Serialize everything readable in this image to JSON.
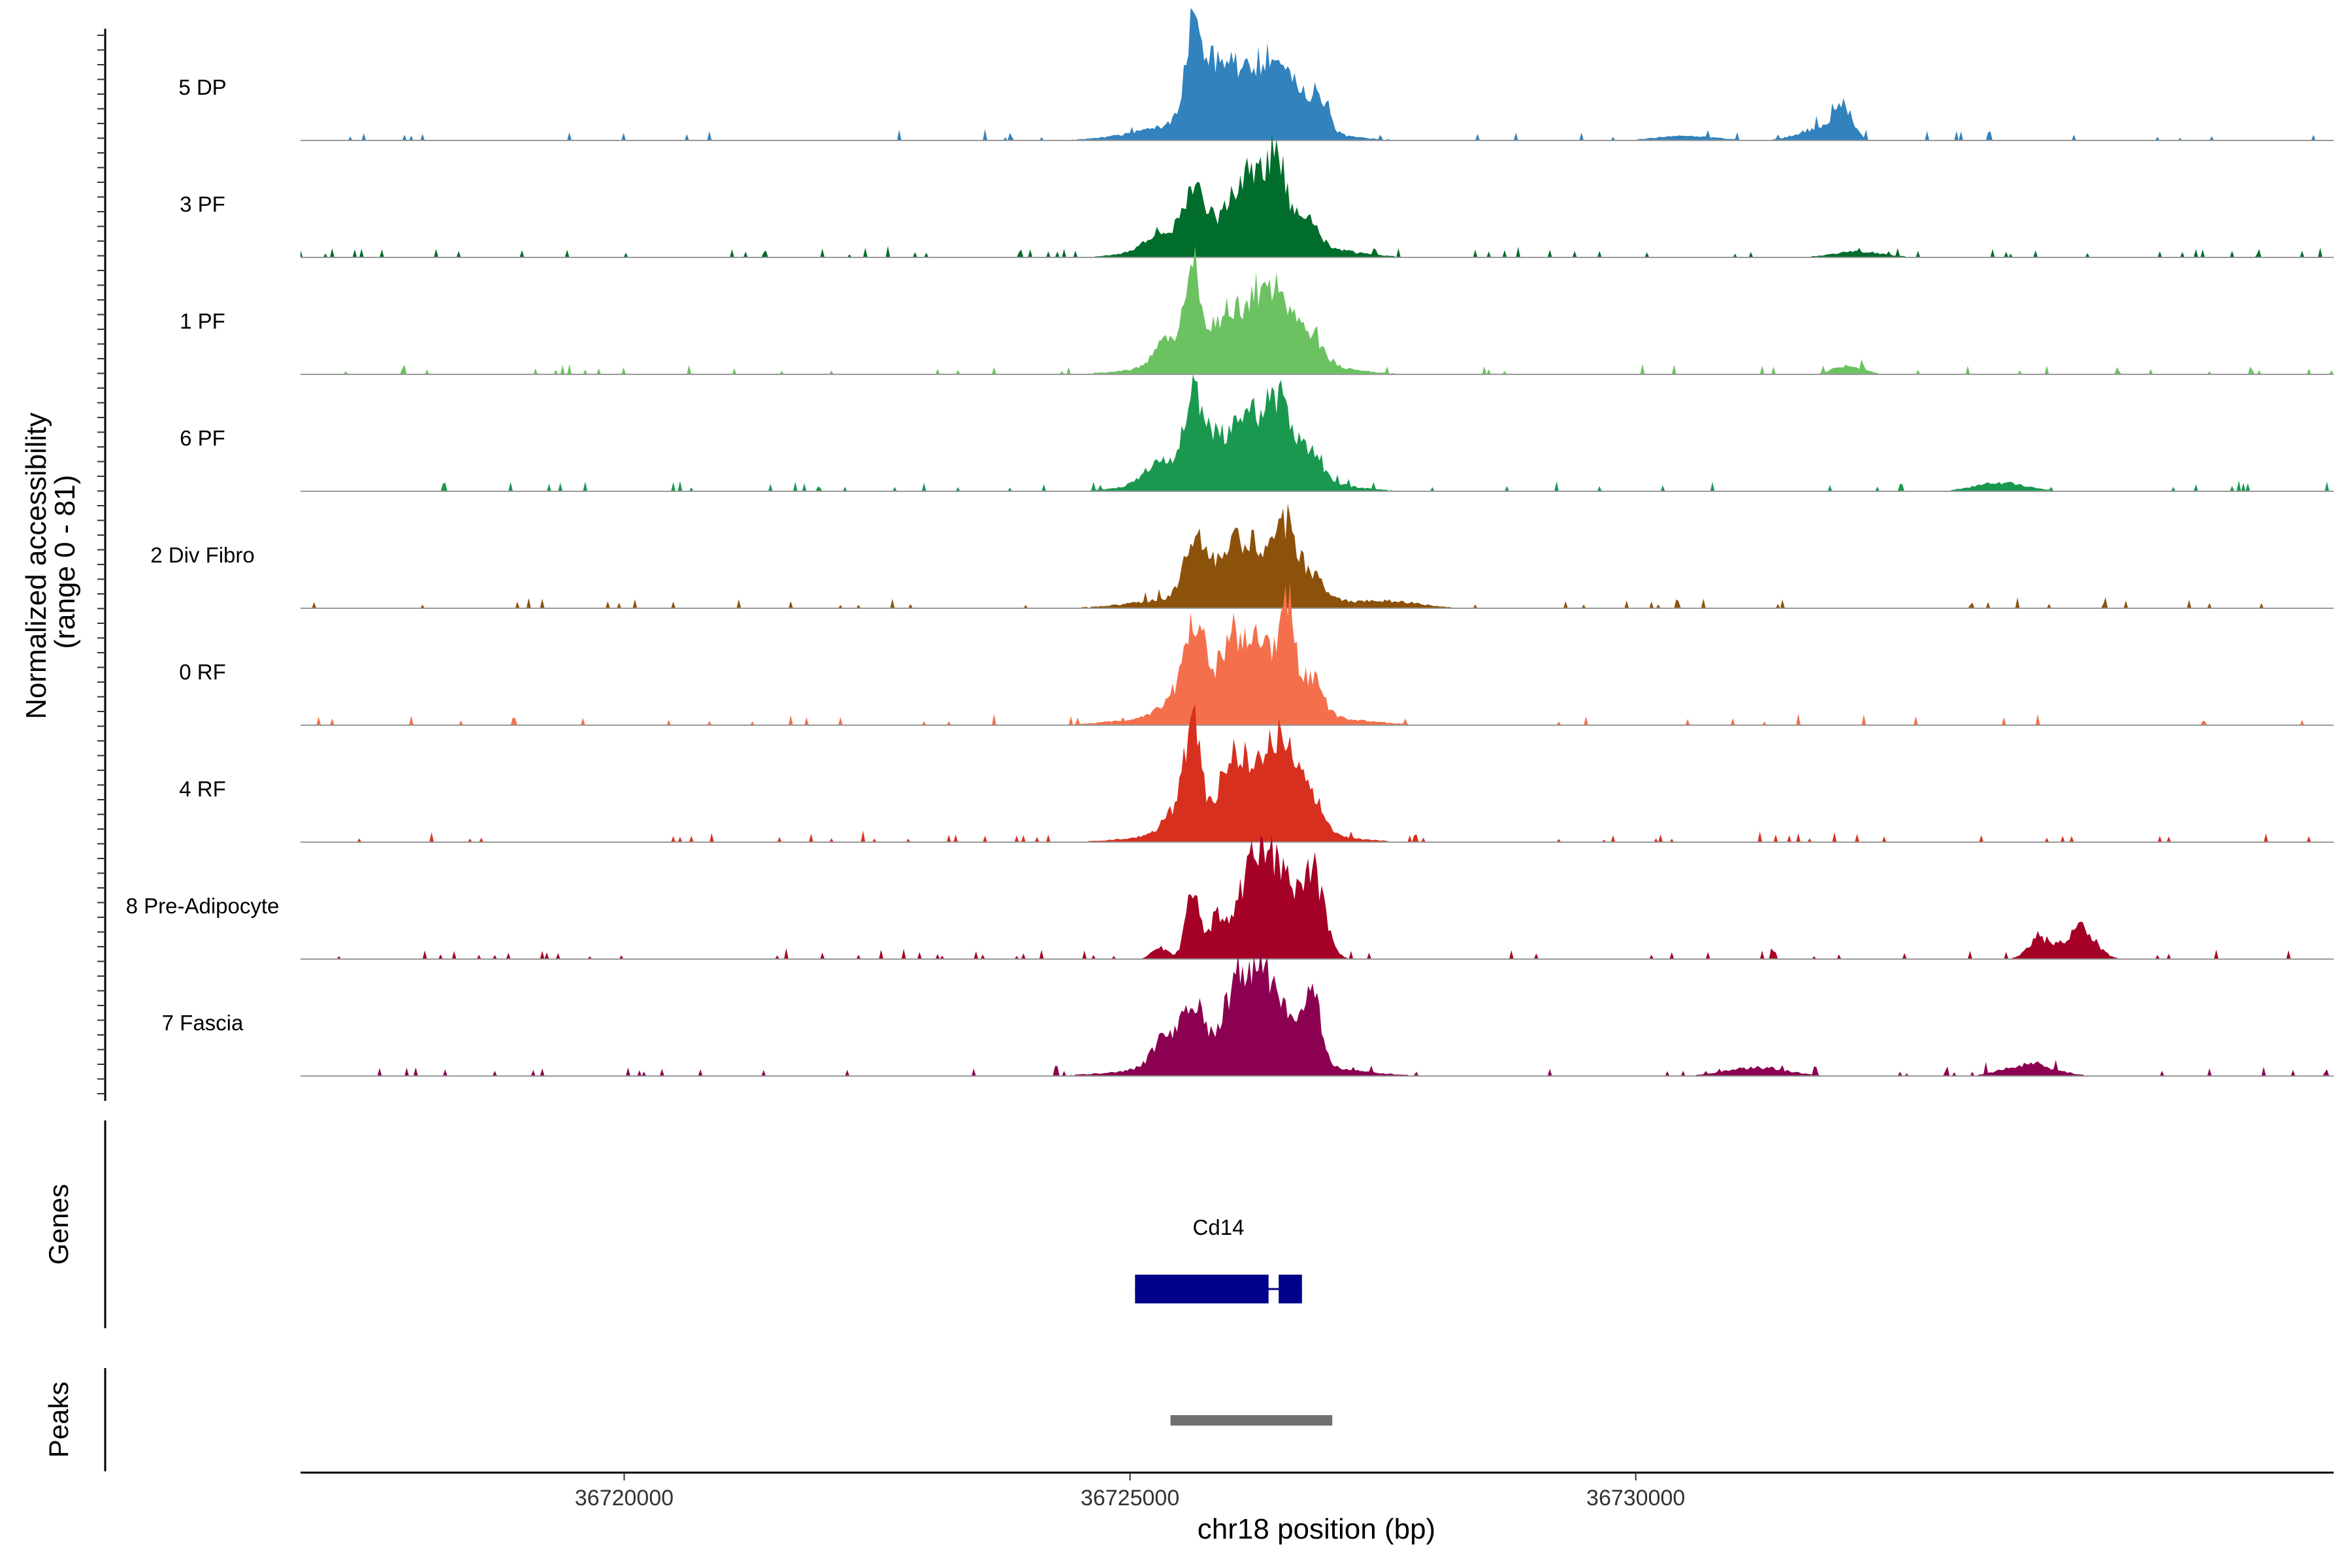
{
  "chart_data": {
    "type": "area",
    "title": "",
    "chromosome": "chr18",
    "xlabel": "chr18 position (bp)",
    "ylabel_line1": "Normalized accessibility",
    "ylabel_line2": "(range 0 - 81)",
    "ylim": [
      0,
      81
    ],
    "xlim": [
      36716800,
      36736900
    ],
    "x_ticks": [
      36720000,
      36725000,
      36730000
    ],
    "x_tick_labels": [
      "36720000",
      "36725000",
      "36730000"
    ],
    "series": [
      {
        "name": "5 DP",
        "color": "#3182bd",
        "peaks": [
          [
            36725640,
            58,
            90
          ],
          [
            36725900,
            28,
            160
          ],
          [
            36726300,
            34,
            200
          ],
          [
            36726600,
            24,
            160
          ],
          [
            36726000,
            20,
            600
          ],
          [
            36726880,
            20,
            80
          ],
          [
            36732050,
            22,
            90
          ],
          [
            36731800,
            8,
            200
          ],
          [
            36730500,
            3,
            300
          ]
        ]
      },
      {
        "name": "3 PF",
        "color": "#006d2c",
        "peaks": [
          [
            36725650,
            34,
            110
          ],
          [
            36726050,
            28,
            110
          ],
          [
            36726250,
            36,
            100
          ],
          [
            36726450,
            60,
            70
          ],
          [
            36726700,
            20,
            130
          ],
          [
            36725300,
            12,
            160
          ],
          [
            36726150,
            18,
            600
          ],
          [
            36732200,
            4,
            250
          ]
        ]
      },
      {
        "name": "1 PF",
        "color": "#6cc261",
        "peaks": [
          [
            36725620,
            62,
            85
          ],
          [
            36725950,
            24,
            120
          ],
          [
            36726250,
            36,
            130
          ],
          [
            36726500,
            40,
            120
          ],
          [
            36726800,
            18,
            110
          ],
          [
            36725350,
            15,
            110
          ],
          [
            36726100,
            18,
            600
          ],
          [
            36732100,
            6,
            150
          ]
        ]
      },
      {
        "name": "6 PF",
        "color": "#1a9850",
        "peaks": [
          [
            36725620,
            52,
            85
          ],
          [
            36725820,
            20,
            90
          ],
          [
            36726150,
            36,
            150
          ],
          [
            36726450,
            48,
            110
          ],
          [
            36726750,
            20,
            120
          ],
          [
            36725300,
            14,
            150
          ],
          [
            36726100,
            18,
            600
          ],
          [
            36733600,
            6,
            250
          ]
        ]
      },
      {
        "name": "2 Div Fibro",
        "color": "#8c510a",
        "peaks": [
          [
            36725650,
            42,
            100
          ],
          [
            36726000,
            22,
            150
          ],
          [
            36726300,
            26,
            200
          ],
          [
            36726550,
            36,
            100
          ],
          [
            36726800,
            14,
            120
          ],
          [
            36726100,
            14,
            650
          ],
          [
            36727600,
            4,
            300
          ]
        ]
      },
      {
        "name": "0 RF",
        "color": "#f4704c",
        "peaks": [
          [
            36725650,
            58,
            90
          ],
          [
            36725450,
            14,
            120
          ],
          [
            36726000,
            34,
            150
          ],
          [
            36726300,
            40,
            200
          ],
          [
            36726550,
            62,
            70
          ],
          [
            36726800,
            24,
            100
          ],
          [
            36726100,
            14,
            700
          ]
        ]
      },
      {
        "name": "4 RF",
        "color": "#d7301f",
        "peaks": [
          [
            36725620,
            70,
            80
          ],
          [
            36725420,
            12,
            100
          ],
          [
            36725980,
            36,
            100
          ],
          [
            36726280,
            42,
            160
          ],
          [
            36726550,
            50,
            120
          ],
          [
            36726800,
            24,
            100
          ],
          [
            36726100,
            16,
            600
          ]
        ]
      },
      {
        "name": "8 Pre-Adipocyte",
        "color": "#a50026",
        "peaks": [
          [
            36725620,
            46,
            70
          ],
          [
            36725860,
            30,
            70
          ],
          [
            36726100,
            36,
            100
          ],
          [
            36726300,
            72,
            110
          ],
          [
            36726520,
            46,
            110
          ],
          [
            36726800,
            60,
            120
          ],
          [
            36725300,
            8,
            80
          ],
          [
            36734400,
            22,
            140
          ],
          [
            36734000,
            14,
            120
          ]
        ]
      },
      {
        "name": "7 Fascia",
        "color": "#8b0050",
        "peaks": [
          [
            36725620,
            42,
            100
          ],
          [
            36725350,
            20,
            120
          ],
          [
            36726050,
            32,
            140
          ],
          [
            36726350,
            56,
            220
          ],
          [
            36726800,
            48,
            80
          ],
          [
            36726100,
            14,
            700
          ],
          [
            36733900,
            8,
            250
          ],
          [
            36731200,
            6,
            300
          ]
        ]
      }
    ],
    "genes": [
      {
        "name": "Cd14",
        "start": 36725050,
        "end": 36726700,
        "exons": [
          [
            36725050,
            36726370
          ],
          [
            36726470,
            36726700
          ]
        ],
        "color": "#00008b"
      }
    ],
    "peaks_track": [
      {
        "start": 36725400,
        "end": 36727000,
        "color": "#707070"
      }
    ],
    "panel_titles": {
      "genes": "Genes",
      "peaks": "Peaks"
    }
  }
}
